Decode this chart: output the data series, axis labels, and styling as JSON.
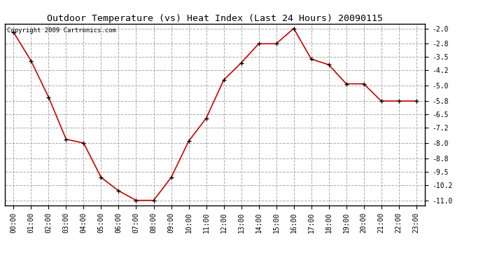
{
  "title": "Outdoor Temperature (vs) Heat Index (Last 24 Hours) 20090115",
  "copyright": "Copyright 2009 Cartronics.com",
  "x_labels": [
    "00:00",
    "01:00",
    "02:00",
    "03:00",
    "04:00",
    "05:00",
    "06:00",
    "07:00",
    "08:00",
    "09:00",
    "10:00",
    "11:00",
    "12:00",
    "13:00",
    "14:00",
    "15:00",
    "16:00",
    "17:00",
    "18:00",
    "19:00",
    "20:00",
    "21:00",
    "22:00",
    "23:00"
  ],
  "y_values": [
    -2.2,
    -3.7,
    -5.6,
    -7.8,
    -8.0,
    -9.8,
    -10.5,
    -11.0,
    -11.0,
    -9.8,
    -7.9,
    -6.7,
    -4.7,
    -3.8,
    -2.8,
    -2.8,
    -2.0,
    -3.6,
    -3.9,
    -4.9,
    -4.9,
    -5.8,
    -5.8,
    -5.8
  ],
  "line_color": "#cc0000",
  "marker": "+",
  "marker_color": "#000000",
  "bg_color": "#ffffff",
  "grid_color": "#aaaaaa",
  "ylim": [
    -11.25,
    -1.75
  ],
  "yticks": [
    -2.0,
    -2.8,
    -3.5,
    -4.2,
    -5.0,
    -5.8,
    -6.5,
    -7.2,
    -8.0,
    -8.8,
    -9.5,
    -10.2,
    -11.0
  ],
  "title_fontsize": 9.5,
  "copyright_fontsize": 6.5,
  "tick_fontsize": 7.0
}
